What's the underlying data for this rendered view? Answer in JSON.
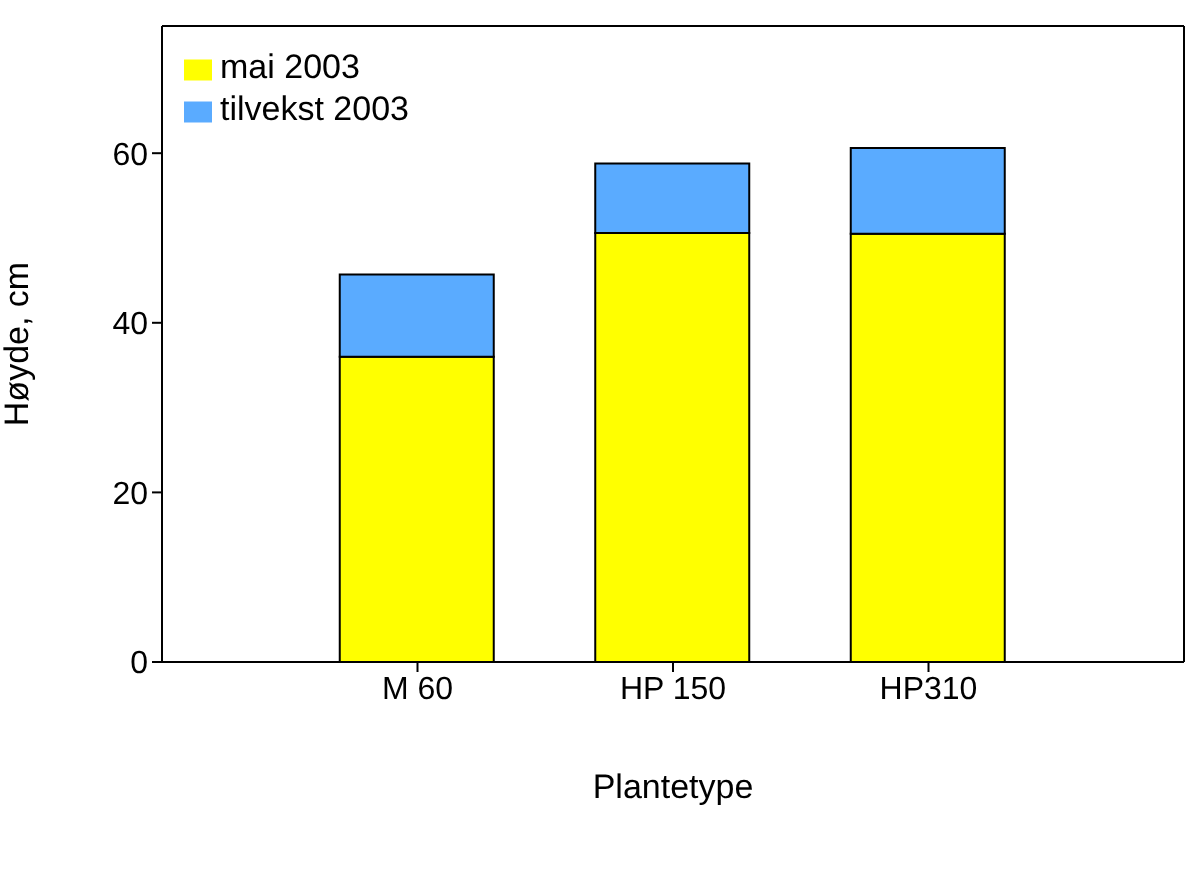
{
  "chart_data": {
    "type": "bar",
    "xlabel": "Plantetype",
    "ylabel": "Høyde, cm",
    "categories": [
      "M 60",
      "HP 150",
      "HP310"
    ],
    "stacked": true,
    "series": [
      {
        "name": "mai 2003",
        "color": "#ffff00",
        "values": [
          36.0,
          50.6,
          50.5
        ]
      },
      {
        "name": "tilvekst 2003",
        "color": "#5aabff",
        "values": [
          9.7,
          8.2,
          10.1
        ]
      }
    ],
    "ylim": [
      0,
      75
    ],
    "yticks": [
      0,
      20,
      40,
      60
    ],
    "grid": false,
    "legend": "top left"
  }
}
